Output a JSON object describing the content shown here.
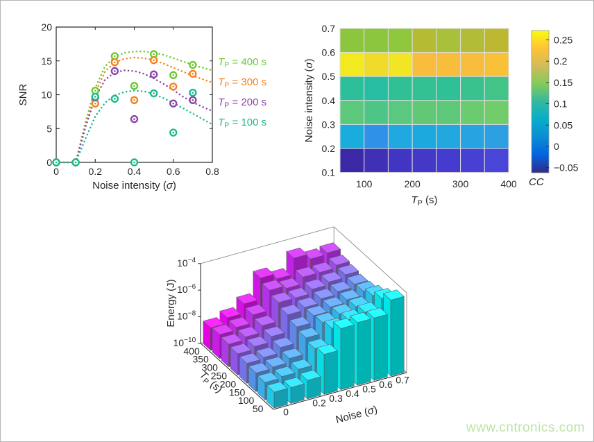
{
  "page": {
    "background": "#ffffff",
    "border_color": "#b4b4b4",
    "axis_color": "#262626"
  },
  "watermark": {
    "text": "www.cntronics.com",
    "color": "#bce3a6"
  },
  "chart_data": [
    {
      "type": "scatter",
      "name": "snr-vs-noise",
      "xlabel_parts": {
        "pre": "Noise intensity (",
        "italic": "σ",
        "post": ")"
      },
      "ylabel": "SNR",
      "xlim": [
        0,
        0.8
      ],
      "ylim": [
        0,
        20
      ],
      "xticks": [
        {
          "v": 0,
          "label": "0"
        },
        {
          "v": 0.2,
          "label": "0.2"
        },
        {
          "v": 0.4,
          "label": "0.4"
        },
        {
          "v": 0.6,
          "label": "0.6"
        },
        {
          "v": 0.8,
          "label": "0.8"
        }
      ],
      "yticks": [
        {
          "v": 0,
          "label": "0"
        },
        {
          "v": 5,
          "label": "5"
        },
        {
          "v": 10,
          "label": "10"
        },
        {
          "v": 15,
          "label": "15"
        },
        {
          "v": 20,
          "label": "20"
        }
      ],
      "series": [
        {
          "name": "TP = 400 s",
          "legend_parts": {
            "var": "T",
            "sub": "P",
            "rest": " = 400 s"
          },
          "color": "#6cca33",
          "points": [
            [
              0,
              0
            ],
            [
              0.1,
              0
            ],
            [
              0.2,
              10.6
            ],
            [
              0.3,
              15.7
            ],
            [
              0.4,
              11.3
            ],
            [
              0.5,
              16.0
            ],
            [
              0.6,
              12.9
            ],
            [
              0.7,
              14.4
            ]
          ],
          "fit_curve": [
            [
              0,
              0
            ],
            [
              0.1,
              0
            ],
            [
              0.15,
              6.0
            ],
            [
              0.2,
              11.0
            ],
            [
              0.25,
              14.2
            ],
            [
              0.3,
              15.6
            ],
            [
              0.35,
              16.2
            ],
            [
              0.4,
              16.4
            ],
            [
              0.45,
              16.4
            ],
            [
              0.5,
              16.2
            ],
            [
              0.55,
              15.9
            ],
            [
              0.6,
              15.4
            ],
            [
              0.65,
              14.9
            ],
            [
              0.7,
              14.4
            ],
            [
              0.75,
              14.0
            ],
            [
              0.8,
              13.6
            ]
          ]
        },
        {
          "name": "TP = 300 s",
          "legend_parts": {
            "var": "T",
            "sub": "P",
            "rest": " = 300 s"
          },
          "color": "#f5821f",
          "points": [
            [
              0,
              0
            ],
            [
              0.1,
              0
            ],
            [
              0.2,
              8.7
            ],
            [
              0.3,
              14.8
            ],
            [
              0.4,
              9.2
            ],
            [
              0.5,
              15.1
            ],
            [
              0.6,
              11.2
            ],
            [
              0.7,
              13.1
            ]
          ],
          "fit_curve": [
            [
              0,
              0
            ],
            [
              0.1,
              0
            ],
            [
              0.15,
              5.5
            ],
            [
              0.2,
              10.3
            ],
            [
              0.25,
              13.4
            ],
            [
              0.3,
              14.8
            ],
            [
              0.35,
              15.3
            ],
            [
              0.4,
              15.5
            ],
            [
              0.45,
              15.4
            ],
            [
              0.5,
              15.1
            ],
            [
              0.55,
              14.6
            ],
            [
              0.6,
              14.0
            ],
            [
              0.65,
              13.4
            ],
            [
              0.7,
              12.8
            ],
            [
              0.75,
              12.3
            ],
            [
              0.8,
              11.8
            ]
          ]
        },
        {
          "name": "TP = 200 s",
          "legend_parts": {
            "var": "T",
            "sub": "P",
            "rest": " = 200 s"
          },
          "color": "#8a46a8",
          "points": [
            [
              0,
              0
            ],
            [
              0.1,
              0
            ],
            [
              0.2,
              9.6
            ],
            [
              0.3,
              13.5
            ],
            [
              0.4,
              6.4
            ],
            [
              0.5,
              13.0
            ],
            [
              0.6,
              8.7
            ],
            [
              0.7,
              9.2
            ]
          ],
          "fit_curve": [
            [
              0,
              0
            ],
            [
              0.1,
              0
            ],
            [
              0.15,
              5.2
            ],
            [
              0.2,
              9.6
            ],
            [
              0.25,
              12.2
            ],
            [
              0.3,
              13.3
            ],
            [
              0.35,
              13.6
            ],
            [
              0.4,
              13.5
            ],
            [
              0.45,
              13.1
            ],
            [
              0.5,
              12.4
            ],
            [
              0.55,
              11.6
            ],
            [
              0.6,
              10.7
            ],
            [
              0.65,
              9.7
            ],
            [
              0.7,
              8.9
            ],
            [
              0.75,
              8.2
            ],
            [
              0.8,
              7.6
            ]
          ]
        },
        {
          "name": "TP = 100 s",
          "legend_parts": {
            "var": "T",
            "sub": "P",
            "rest": " = 100 s"
          },
          "color": "#1cb98b",
          "points": [
            [
              0,
              0
            ],
            [
              0.1,
              0
            ],
            [
              0.2,
              9.7
            ],
            [
              0.3,
              9.4
            ],
            [
              0.4,
              0
            ],
            [
              0.5,
              10.2
            ],
            [
              0.6,
              4.4
            ],
            [
              0.7,
              10.3
            ]
          ],
          "fit_curve": [
            [
              0,
              0
            ],
            [
              0.1,
              0
            ],
            [
              0.15,
              3.5
            ],
            [
              0.2,
              6.8
            ],
            [
              0.25,
              8.8
            ],
            [
              0.3,
              9.9
            ],
            [
              0.35,
              10.4
            ],
            [
              0.4,
              10.6
            ],
            [
              0.45,
              10.5
            ],
            [
              0.5,
              10.1
            ],
            [
              0.55,
              9.5
            ],
            [
              0.6,
              8.8
            ],
            [
              0.65,
              8.0
            ],
            [
              0.7,
              7.2
            ],
            [
              0.75,
              6.4
            ],
            [
              0.8,
              5.6
            ]
          ]
        }
      ]
    },
    {
      "type": "heatmap",
      "name": "cc-heatmap",
      "xlabel_parts": {
        "var": "T",
        "sub": "P",
        "rest": " (s)"
      },
      "ylabel_parts": {
        "pre": "Noise intensity (",
        "italic": "σ",
        "post": ")"
      },
      "col_edges": [
        50,
        100,
        150,
        200,
        250,
        300,
        350,
        400
      ],
      "row_edges": [
        0.1,
        0.2,
        0.3,
        0.4,
        0.5,
        0.6,
        0.7
      ],
      "xtick_labels": [
        "100",
        "200",
        "300",
        "400"
      ],
      "ytick_labels": [
        "0.1",
        "0.2",
        "0.3",
        "0.4",
        "0.5",
        "0.6",
        "0.7"
      ],
      "rows_top_to_bottom_sigma": [
        "0.6-0.7",
        "0.5-0.6",
        "0.4-0.5",
        "0.3-0.4",
        "0.2-0.3",
        "0.1-0.2"
      ],
      "cc_values_top_to_bottom": [
        [
          0.17,
          0.17,
          0.17,
          0.2,
          0.19,
          0.19,
          0.2
        ],
        [
          0.26,
          0.25,
          0.26,
          0.22,
          0.22,
          0.22,
          0.22
        ],
        [
          0.12,
          0.11,
          0.12,
          0.12,
          0.12,
          0.13,
          0.13
        ],
        [
          0.15,
          0.14,
          0.15,
          0.15,
          0.15,
          0.16,
          0.16
        ],
        [
          0.05,
          0.06,
          0.05,
          0.05,
          0.05,
          0.05,
          0.06
        ],
        [
          -0.06,
          -0.05,
          -0.05,
          -0.04,
          -0.04,
          -0.04,
          -0.03
        ]
      ],
      "cell_colors_top_to_bottom": [
        [
          "#8cc63f",
          "#8cc63f",
          "#8fc73d",
          "#b6bb34",
          "#a9c03a",
          "#b3bc36",
          "#bcb832"
        ],
        [
          "#f2e921",
          "#f0da2a",
          "#f1e524",
          "#f8bd3d",
          "#f9bd3c",
          "#f8bd3d",
          "#f9c138"
        ],
        [
          "#2cbf9a",
          "#26bda3",
          "#2fc096",
          "#33c193",
          "#30c095",
          "#39c28e",
          "#42c488"
        ],
        [
          "#5cc87c",
          "#4dc587",
          "#5ac87e",
          "#61c976",
          "#5ec879",
          "#6bcb6f",
          "#71cc6a"
        ],
        [
          "#1aacdd",
          "#2f92e8",
          "#20a8e0",
          "#1caade",
          "#21a8df",
          "#26a4e1",
          "#2d9fe3"
        ],
        [
          "#3a28a4",
          "#3f30b6",
          "#4335c4",
          "#4438c9",
          "#453bce",
          "#4740d3",
          "#4a45d9"
        ]
      ],
      "colorbar": {
        "label": "CC",
        "vmin": -0.062,
        "vmax": 0.272,
        "ticks": [
          {
            "v": 0.25,
            "label": "0.25"
          },
          {
            "v": 0.2,
            "label": "0.2"
          },
          {
            "v": 0.15,
            "label": "0.15"
          },
          {
            "v": 0.1,
            "label": "0.1"
          },
          {
            "v": 0.05,
            "label": "0.05"
          },
          {
            "v": 0,
            "label": "0"
          },
          {
            "v": -0.05,
            "label": "−0.05"
          }
        ],
        "gradient_top_to_bottom": [
          "#f9fb0e",
          "#ffc337",
          "#d1bb59",
          "#81cc59",
          "#33b8a1",
          "#06aeca",
          "#0a8dd4",
          "#0363e1",
          "#352987"
        ]
      }
    },
    {
      "type": "bar3d",
      "name": "energy-bar3d",
      "zlabel": "Energy (J)",
      "tp_axis_label_parts": {
        "var": "T",
        "sub": "P",
        "rest": " (s)"
      },
      "noise_axis_label_parts": {
        "pre": "Noise (",
        "italic": "σ",
        "post": ")"
      },
      "tp_values": [
        50,
        100,
        150,
        200,
        250,
        300,
        350,
        400
      ],
      "tp_tick_labels": [
        "50",
        "100",
        "150",
        "200",
        "250",
        "300",
        "350",
        "400"
      ],
      "noise_values": [
        0,
        0.1,
        0.2,
        0.3,
        0.4,
        0.5,
        0.6,
        0.7
      ],
      "noise_tick_labels": [
        "0",
        "",
        "0.2",
        "0.3",
        "0.4",
        "0.5",
        "0.6",
        "0.7"
      ],
      "z_tick_exponents": [
        -10,
        -8,
        -6,
        -4
      ],
      "zlim_exponents": [
        -10,
        -4
      ],
      "colormap": [
        "#ff00ff",
        "#00ffff"
      ],
      "log10_energy_rows_tp50_to_tp400": [
        [
          -8.8,
          -8.8,
          -8.6,
          -7.0,
          -5.4,
          -5.3,
          -5.3,
          -4.3
        ],
        [
          -8.7,
          -8.6,
          -8.4,
          -7.2,
          -6.0,
          -5.7,
          -5.5,
          -4.8
        ],
        [
          -8.6,
          -8.5,
          -8.2,
          -7.0,
          -6.2,
          -5.9,
          -5.7,
          -5.2
        ],
        [
          -8.5,
          -8.4,
          -8.0,
          -6.8,
          -6.3,
          -6.0,
          -5.8,
          -5.5
        ],
        [
          -8.4,
          -8.2,
          -7.8,
          -6.5,
          -6.3,
          -6.0,
          -5.8,
          -5.6
        ],
        [
          -8.3,
          -8.1,
          -7.6,
          -6.2,
          -6.2,
          -5.9,
          -5.7,
          -5.5
        ],
        [
          -8.2,
          -8.0,
          -7.4,
          -5.9,
          -6.1,
          -5.6,
          -5.6,
          -5.4
        ],
        [
          -8.3,
          -7.9,
          -7.2,
          -5.6,
          -6.0,
          -4.8,
          -5.2,
          -5.1
        ]
      ]
    }
  ]
}
